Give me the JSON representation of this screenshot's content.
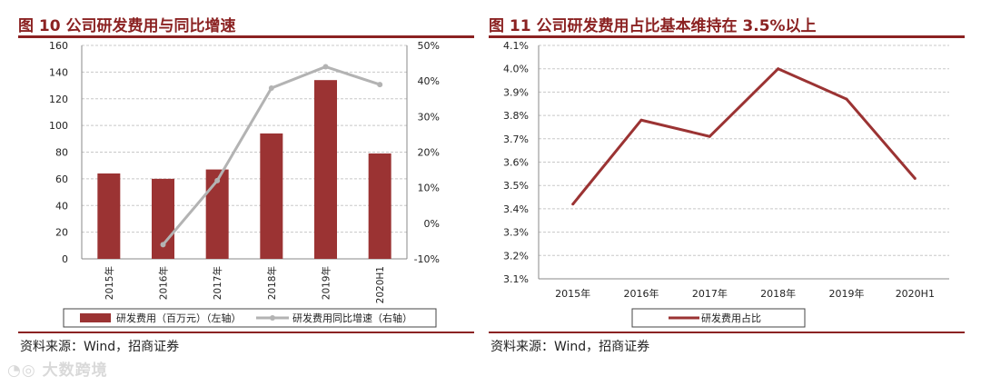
{
  "left": {
    "title": "图 10  公司研发费用与同比增速",
    "source": "资料来源：Wind，招商证券",
    "legend": {
      "bar": "研发费用（百万元）（左轴）",
      "line": "研发费用同比增速（右轴）"
    },
    "colors": {
      "bar": "#9b3333",
      "line": "#b3b3b3"
    }
  },
  "right": {
    "title": "图 11  公司研发费用占比基本维持在 3.5%以上",
    "source": "资料来源：Wind，招商证券",
    "legend": {
      "line": "研发费用占比"
    },
    "colors": {
      "line": "#9b3333"
    }
  },
  "watermark": "大数跨境",
  "chart_data": [
    {
      "type": "bar",
      "title": "图 10  公司研发费用与同比增速",
      "categories": [
        "2015年",
        "2016年",
        "2017年",
        "2018年",
        "2019年",
        "2020H1"
      ],
      "ylim": [
        0,
        160
      ],
      "yticks": [
        "0",
        "20",
        "40",
        "60",
        "80",
        "100",
        "120",
        "140",
        "160"
      ],
      "y2lim": [
        -10,
        50
      ],
      "y2ticks": [
        "-10%",
        "0%",
        "10%",
        "20%",
        "30%",
        "40%",
        "50%"
      ],
      "grid": true,
      "legend_position": "bottom",
      "series": [
        {
          "name": "研发费用（百万元）（左轴）",
          "axis": "left",
          "type": "bar",
          "values": [
            64,
            60,
            67,
            94,
            134,
            79
          ]
        },
        {
          "name": "研发费用同比增速（右轴）",
          "axis": "right",
          "type": "line",
          "values": [
            null,
            -6,
            12,
            38,
            44,
            39
          ]
        }
      ]
    },
    {
      "type": "line",
      "title": "图 11  公司研发费用占比基本维持在 3.5%以上",
      "categories": [
        "2015年",
        "2016年",
        "2017年",
        "2018年",
        "2019年",
        "2020H1"
      ],
      "ylim": [
        3.1,
        4.1
      ],
      "yticks": [
        "3.1%",
        "3.2%",
        "3.3%",
        "3.4%",
        "3.5%",
        "3.6%",
        "3.7%",
        "3.8%",
        "3.9%",
        "4.0%",
        "4.1%"
      ],
      "grid": true,
      "legend_position": "bottom",
      "series": [
        {
          "name": "研发费用占比",
          "values": [
            3.42,
            3.78,
            3.71,
            4.0,
            3.87,
            3.53
          ]
        }
      ]
    }
  ]
}
